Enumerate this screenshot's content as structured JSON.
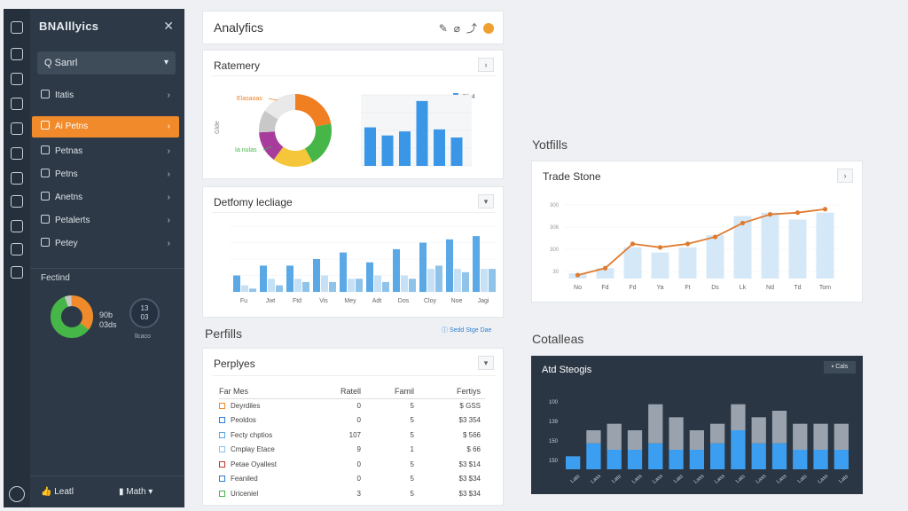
{
  "sidebar": {
    "title": "BNAlllyics",
    "search": "Q Sanrl",
    "items": [
      "Itatis",
      "Ai Petns",
      "Petnas",
      "Petns",
      "Anetns",
      "Petalerts",
      "Petey"
    ],
    "featured_label": "Fectind",
    "stat": [
      "90b",
      "03ds"
    ],
    "ring": [
      "13",
      "03"
    ],
    "ring_label": "llcaco",
    "footer": [
      "Leatl",
      "Math"
    ]
  },
  "header": {
    "title": "Analyfics"
  },
  "panels": {
    "ratemery": "Ratemery",
    "dettomy": "Detfomy lecliage",
    "perfills": "Perfills",
    "perfills_link": "Sedd Stge Dae",
    "perplyes": "Perplyes",
    "yotfills": "Yotfills",
    "trade": "Trade Stone",
    "cotalleas": "Cotalleas",
    "dark_title": "Atd Steogis",
    "dark_btn": "Cals"
  },
  "donut_chart": {
    "type": "pie",
    "ylabel": "Glde",
    "labels": [
      "Elasaoas",
      "Ia nulas"
    ],
    "values": [
      22,
      20,
      18,
      14,
      10,
      16
    ],
    "colors": [
      "#f07f22",
      "#46b648",
      "#f5c53a",
      "#a73c9c",
      "#c8c8c8",
      "#e9e9e9"
    ]
  },
  "mini_bar_chart": {
    "type": "bar",
    "legend": "Qlg4",
    "values": [
      38,
      30,
      34,
      64,
      36,
      28
    ],
    "ylim": [
      0,
      70
    ]
  },
  "dettomy_chart": {
    "type": "bar",
    "categories": [
      "Fu",
      "Jwt",
      "Ftd",
      "Vis",
      "Mey",
      "Adt",
      "Dos",
      "Cloy",
      "Noe",
      "Jagi"
    ],
    "series": [
      {
        "values": [
          2,
          4,
          4,
          5,
          4,
          5,
          5,
          7,
          7,
          7
        ]
      },
      {
        "values": [
          5,
          8,
          8,
          10,
          12,
          9,
          13,
          15,
          16,
          17
        ]
      },
      {
        "values": [
          1,
          2,
          3,
          3,
          4,
          3,
          4,
          8,
          6,
          7
        ]
      }
    ],
    "ylim": [
      0,
      20
    ]
  },
  "table": {
    "headers": [
      "Far Mes",
      "Ratell",
      "Famil",
      "Fertiys"
    ],
    "rows": [
      {
        "name": "Deyrdiles",
        "v1": "0",
        "v2": "5",
        "v3": "$ GSS",
        "color": "#f08a2a"
      },
      {
        "name": "Peoldos",
        "v1": "0",
        "v2": "5",
        "v3": "$3 354",
        "color": "#2f7fd0"
      },
      {
        "name": "Fecty chptios",
        "v1": "107",
        "v2": "5",
        "v3": "$ 566",
        "color": "#5aa9e6"
      },
      {
        "name": "Cmplay Etace",
        "v1": "9",
        "v2": "1",
        "v3": "$ 66",
        "color": "#8fc3ea"
      },
      {
        "name": "Petae Oyallest",
        "v1": "0",
        "v2": "5",
        "v3": "$3 $14",
        "color": "#c0392b"
      },
      {
        "name": "Feaniled",
        "v1": "0",
        "v2": "5",
        "v3": "$3 $34",
        "color": "#2f7fd0"
      },
      {
        "name": "Uriceniel",
        "v1": "3",
        "v2": "5",
        "v3": "$3 $34",
        "color": "#46b648"
      }
    ]
  },
  "trade_chart": {
    "type": "line",
    "categories": [
      "No",
      "Fd",
      "Fd",
      "Ya",
      "Ft",
      "Ds",
      "Lk",
      "Nd",
      "Td",
      "Tom"
    ],
    "bars": [
      3,
      6,
      18,
      15,
      18,
      25,
      36,
      38,
      34,
      38
    ],
    "line": [
      2,
      6,
      20,
      18,
      20,
      24,
      32,
      37,
      38,
      40
    ],
    "ylabels": [
      "30",
      "300",
      "306",
      "300"
    ],
    "ylim": [
      0,
      45
    ]
  },
  "stack_chart": {
    "type": "bar",
    "ylabels": [
      "150",
      "150",
      "139",
      "100"
    ],
    "series": [
      {
        "values": [
          10,
          20,
          15,
          15,
          20,
          15,
          15,
          20,
          30,
          20,
          20,
          15,
          15,
          15
        ]
      },
      {
        "values": [
          0,
          10,
          20,
          15,
          30,
          25,
          15,
          15,
          20,
          20,
          25,
          20,
          20,
          20
        ]
      }
    ],
    "ylim": [
      0,
      60
    ],
    "xlabels": [
      "Lats",
      "Lass",
      "Lats",
      "Lass",
      "Lass",
      "Lats",
      "Lass",
      "Lass",
      "Lats",
      "Lass",
      "Lass",
      "Lats",
      "Lass",
      "Lats"
    ]
  }
}
